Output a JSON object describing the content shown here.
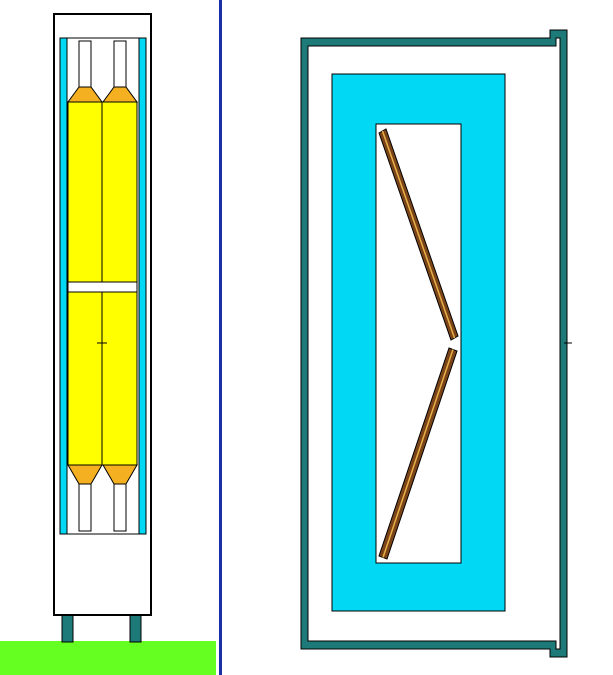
{
  "colors": {
    "background": "#ffffff",
    "outline": "#000000",
    "yellow_body": "#ffff00",
    "orange_cap": "#f4b020",
    "cyan_liner": "#00d8f4",
    "teal_frame": "#1e7a78",
    "green_ground": "#66ff22",
    "blue_divider": "#1a2fa8",
    "plate_brown": "#7a4418",
    "plate_stripe": "#e8b048"
  },
  "icons": [
    "crosshair-mark"
  ]
}
